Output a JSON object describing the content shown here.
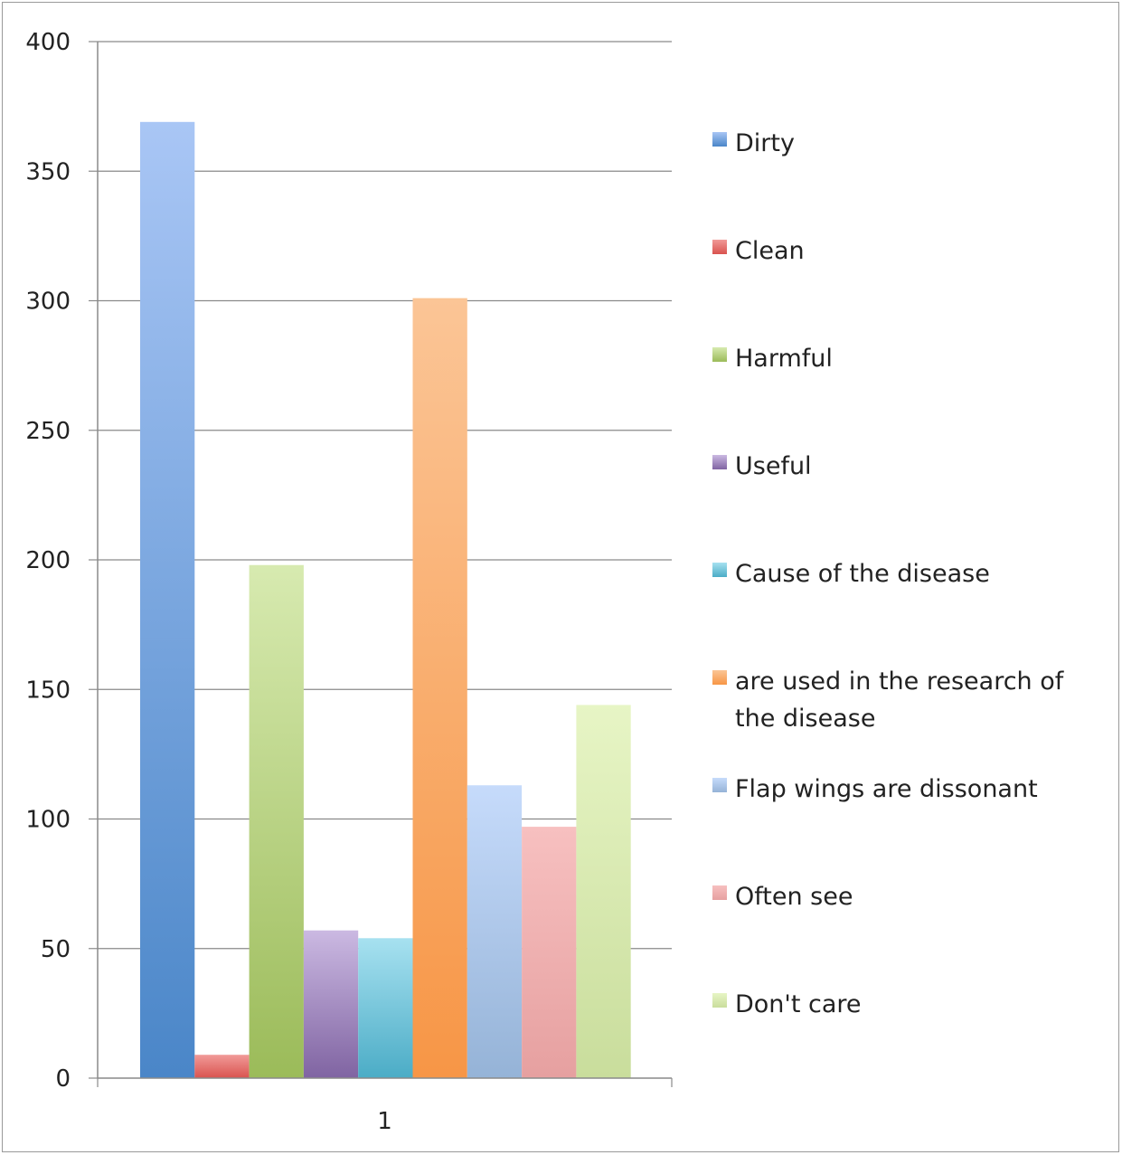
{
  "chart_data": {
    "type": "bar",
    "categories": [
      "1"
    ],
    "series": [
      {
        "name": "Dirty",
        "values": [
          369
        ],
        "color": "#4a86c8",
        "light": "#a9c6f5"
      },
      {
        "name": "Clean",
        "values": [
          9
        ],
        "color": "#d9534f",
        "light": "#f19a98"
      },
      {
        "name": "Harmful",
        "values": [
          198
        ],
        "color": "#9bbb59",
        "light": "#d7eab0"
      },
      {
        "name": "Useful",
        "values": [
          57
        ],
        "color": "#8064a2",
        "light": "#cbb9e2"
      },
      {
        "name": "Cause of the disease",
        "values": [
          54
        ],
        "color": "#4bacc6",
        "light": "#a7e1f0"
      },
      {
        "name": "are used in the research of the disease",
        "values": [
          301
        ],
        "color": "#f79646",
        "light": "#fbc596"
      },
      {
        "name": "Flap wings are dissonant",
        "values": [
          113
        ],
        "color": "#95b3d7",
        "light": "#c6dbfb"
      },
      {
        "name": "Often see",
        "values": [
          97
        ],
        "color": "#e6a0a0",
        "light": "#f7c0c0"
      },
      {
        "name": "Don't care",
        "values": [
          144
        ],
        "color": "#c9dd9c",
        "light": "#e7f5c5"
      }
    ],
    "ylim": [
      0,
      400
    ],
    "yticks": [
      0,
      50,
      100,
      150,
      200,
      250,
      300,
      350,
      400
    ],
    "grid": true,
    "legend_position": "right"
  }
}
